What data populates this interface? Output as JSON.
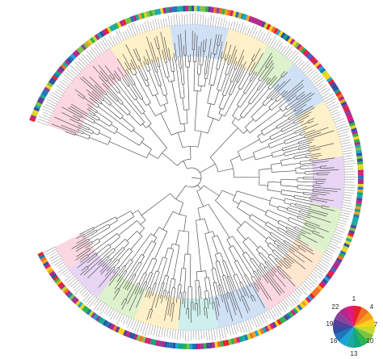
{
  "figure": {
    "kind": "circular phylogenetic tree",
    "leaf_count_estimate": 330,
    "branch_color": "#555555",
    "outer_ring": {
      "band_count_estimate": 330,
      "gap_between": [
        "upper-left",
        "left"
      ]
    },
    "clade_tints": [
      "#f7b6c8",
      "#fde49a",
      "#bfe6a3",
      "#a9c8ee",
      "#d5b3ea",
      "#ffd1a6",
      "#a8e2dd"
    ]
  },
  "color_key": {
    "title": "",
    "labels": [
      "1",
      "4",
      "7",
      "10",
      "13",
      "16",
      "19",
      "22"
    ],
    "colors": [
      "#e8202a",
      "#f36f21",
      "#f7a11a",
      "#fbd21a",
      "#c6d92d",
      "#7dc242",
      "#2cb34a",
      "#0fa57d",
      "#1aa9a3",
      "#19a4d8",
      "#1d76bc",
      "#2e4fa3",
      "#5a3e98",
      "#86429a",
      "#b3268d",
      "#e0197a"
    ]
  }
}
